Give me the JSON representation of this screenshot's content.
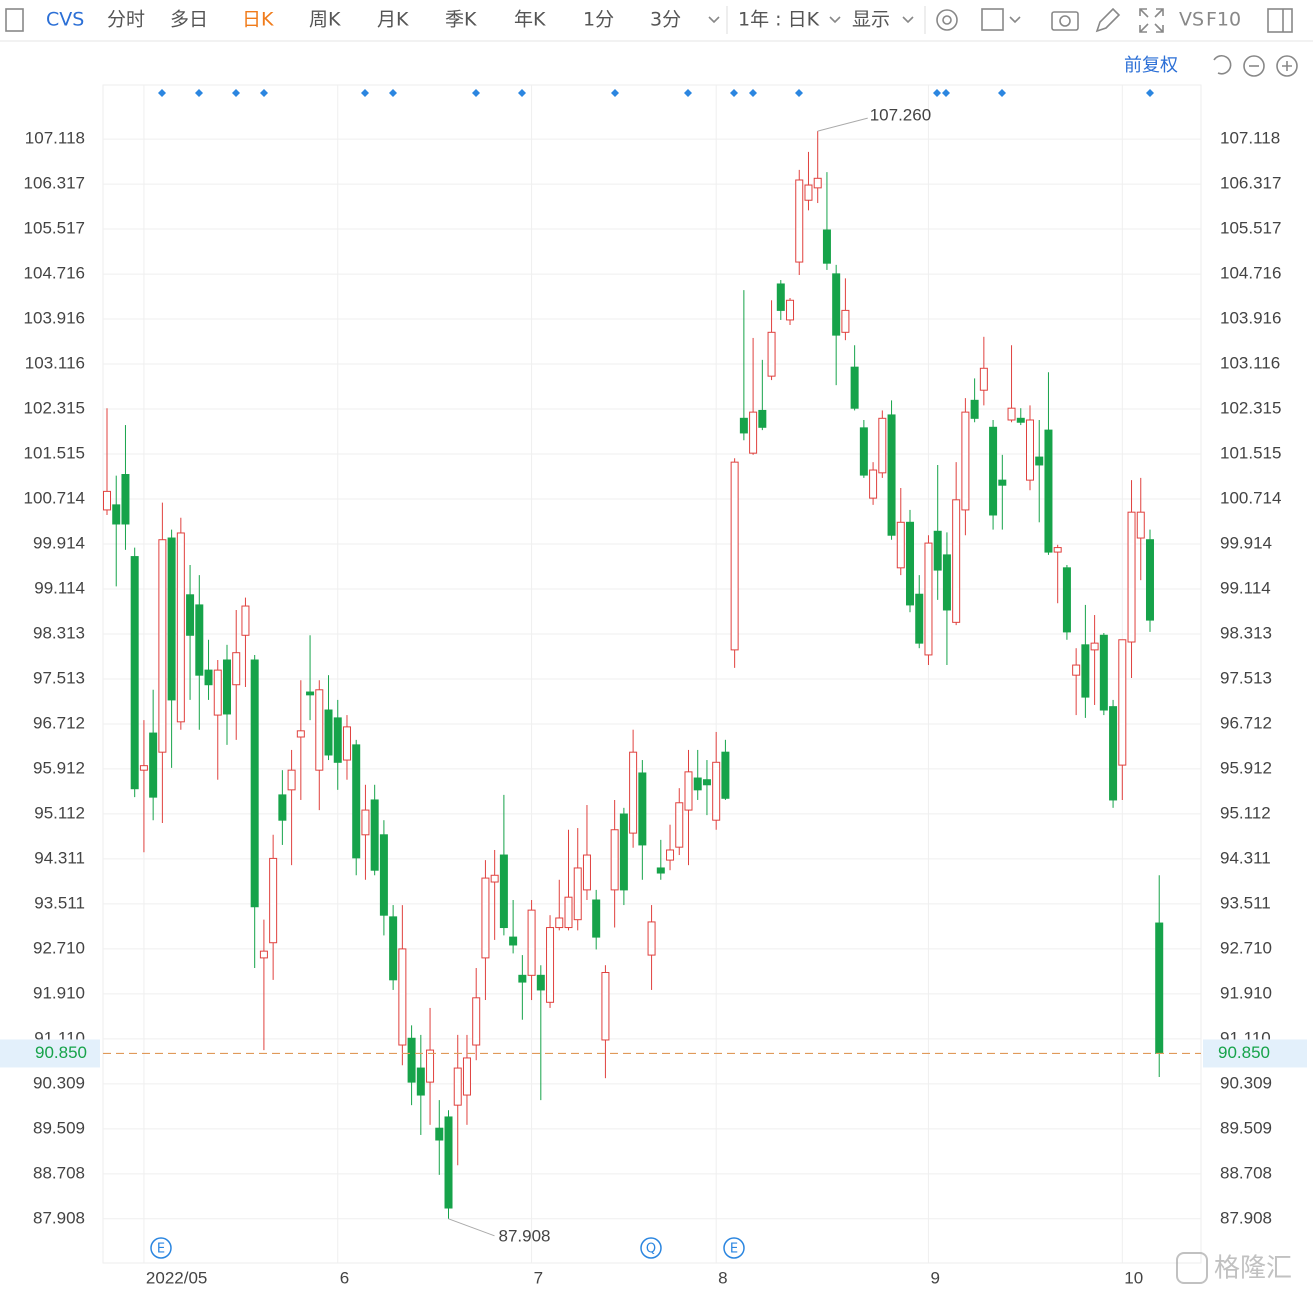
{
  "toolbar": {
    "symbol": "CVS",
    "tabs": [
      "分时",
      "多日",
      "日K",
      "周K",
      "月K",
      "季K",
      "年K",
      "1分",
      "3分"
    ],
    "active_tab": 2,
    "period": "1年 : 日K",
    "display": "显示",
    "vs": "VS",
    "f10": "F10",
    "adjust": "前复权"
  },
  "events": [
    "E",
    "Q",
    "E"
  ],
  "watermark": "格隆汇",
  "chart_data": {
    "type": "candlestick",
    "up_color": "#e0413e",
    "down_color": "#16a34a",
    "ylim": [
      87.62,
      108.08
    ],
    "yticks": [
      107.118,
      106.317,
      105.517,
      104.716,
      103.916,
      103.116,
      102.315,
      101.515,
      100.714,
      99.914,
      99.114,
      98.313,
      97.513,
      96.712,
      95.912,
      95.112,
      94.311,
      93.511,
      {
        "value": 92.71,
        "label": "92.710"
      },
      {
        "value": 91.91,
        "label": "91.910"
      },
      {
        "value": 91.11,
        "label": "91.110"
      },
      90.309,
      89.509,
      88.708,
      87.908
    ],
    "grid": true,
    "current_price": {
      "value": 90.85,
      "label": "90.850"
    },
    "max_label": {
      "value": 107.26,
      "label": "107.260"
    },
    "min_label": {
      "value": 87.908,
      "label": "87.908"
    },
    "categories": [
      null,
      null,
      null,
      null,
      "2022/05",
      null,
      null,
      null,
      null,
      null,
      null,
      null,
      null,
      null,
      null,
      null,
      null,
      null,
      null,
      null,
      null,
      null,
      null,
      null,
      null,
      "6",
      null,
      null,
      null,
      null,
      null,
      null,
      null,
      null,
      null,
      null,
      null,
      null,
      null,
      null,
      null,
      null,
      null,
      null,
      null,
      null,
      "7",
      null,
      null,
      null,
      null,
      null,
      null,
      null,
      null,
      null,
      null,
      null,
      null,
      null,
      null,
      null,
      null,
      null,
      null,
      null,
      "8",
      null,
      null,
      null,
      null,
      null,
      null,
      null,
      null,
      null,
      null,
      null,
      null,
      null,
      null,
      null,
      null,
      null,
      null,
      null,
      null,
      null,
      null,
      "9",
      null,
      null,
      null,
      null,
      null,
      null,
      null,
      null,
      null,
      null,
      null,
      null,
      null,
      null,
      null,
      null,
      null,
      null,
      null,
      null,
      "10",
      null,
      null,
      null,
      null
    ],
    "candles": [
      [
        100.52,
        102.33,
        100.43,
        100.85
      ],
      [
        100.61,
        101.13,
        99.16,
        100.27
      ],
      [
        101.15,
        102.03,
        99.81,
        100.27
      ],
      [
        99.69,
        99.85,
        95.41,
        95.56
      ],
      [
        95.89,
        96.78,
        94.43,
        95.97
      ],
      [
        96.55,
        97.32,
        95.0,
        95.41
      ],
      [
        96.21,
        100.65,
        94.95,
        99.99
      ],
      [
        100.02,
        100.17,
        95.93,
        97.14
      ],
      [
        96.75,
        100.38,
        96.61,
        100.11
      ],
      [
        99.01,
        99.54,
        97.14,
        98.29
      ],
      [
        98.83,
        99.36,
        96.61,
        97.58
      ],
      [
        97.67,
        98.21,
        97.14,
        97.41
      ],
      [
        96.87,
        97.85,
        95.72,
        97.67
      ],
      [
        97.85,
        98.12,
        96.34,
        96.89
      ],
      [
        97.41,
        98.74,
        96.43,
        97.98
      ],
      [
        98.29,
        98.96,
        97.37,
        98.81
      ],
      [
        97.85,
        97.94,
        92.37,
        93.46
      ],
      [
        92.55,
        93.23,
        90.91,
        92.67
      ],
      [
        92.82,
        94.74,
        92.16,
        94.32
      ],
      [
        95.45,
        95.89,
        94.56,
        95.0
      ],
      [
        95.54,
        96.25,
        94.2,
        95.89
      ],
      [
        96.48,
        97.49,
        95.36,
        96.59
      ],
      [
        97.28,
        98.29,
        96.78,
        97.23
      ],
      [
        95.89,
        97.49,
        95.18,
        97.32
      ],
      [
        96.96,
        97.58,
        96.07,
        96.16
      ],
      [
        96.82,
        97.14,
        95.54,
        96.03
      ],
      [
        96.07,
        96.87,
        95.72,
        96.66
      ],
      [
        96.34,
        96.43,
        94.02,
        94.33
      ],
      [
        94.74,
        95.63,
        93.94,
        95.18
      ],
      [
        95.36,
        95.63,
        94.02,
        94.11
      ],
      [
        94.74,
        95.0,
        92.95,
        93.31
      ],
      [
        93.28,
        93.49,
        91.98,
        92.16
      ],
      [
        91.0,
        93.49,
        90.64,
        92.71
      ],
      [
        91.12,
        91.35,
        89.93,
        90.34
      ],
      [
        90.59,
        91.18,
        89.4,
        90.11
      ],
      [
        90.34,
        91.66,
        89.58,
        90.91
      ],
      [
        89.52,
        90.02,
        88.69,
        89.31
      ],
      [
        89.72,
        89.84,
        87.908,
        88.1
      ],
      [
        89.93,
        91.18,
        88.86,
        90.59
      ],
      [
        90.11,
        91.18,
        89.58,
        90.77
      ],
      [
        91.0,
        92.37,
        90.73,
        91.84
      ],
      [
        92.55,
        94.29,
        91.8,
        93.97
      ],
      [
        93.9,
        94.47,
        92.87,
        94.02
      ],
      [
        94.38,
        95.45,
        92.95,
        93.09
      ],
      [
        92.92,
        93.58,
        92.63,
        92.78
      ],
      [
        92.24,
        92.6,
        91.45,
        92.12
      ],
      [
        92.24,
        93.58,
        91.8,
        93.4
      ],
      [
        92.24,
        92.42,
        90.02,
        91.98
      ],
      [
        91.76,
        93.31,
        91.66,
        93.09
      ],
      [
        93.09,
        93.94,
        93.04,
        93.26
      ],
      [
        93.09,
        94.83,
        93.04,
        93.63
      ],
      [
        93.23,
        94.86,
        93.04,
        94.15
      ],
      [
        93.76,
        95.27,
        93.58,
        94.38
      ],
      [
        93.58,
        93.76,
        92.7,
        92.92
      ],
      [
        91.09,
        92.42,
        90.41,
        92.29
      ],
      [
        93.76,
        95.36,
        93.09,
        94.83
      ],
      [
        95.11,
        95.22,
        93.49,
        93.76
      ],
      [
        94.77,
        96.61,
        94.51,
        96.21
      ],
      [
        95.84,
        96.07,
        93.94,
        94.56
      ],
      [
        92.6,
        93.49,
        91.98,
        93.19
      ],
      [
        94.15,
        94.65,
        93.94,
        94.06
      ],
      [
        94.29,
        94.92,
        94.11,
        94.47
      ],
      [
        94.52,
        95.57,
        94.38,
        95.31
      ],
      [
        95.18,
        96.25,
        94.2,
        95.86
      ],
      [
        95.75,
        96.25,
        95.36,
        95.54
      ],
      [
        95.72,
        96.07,
        95.09,
        95.63
      ],
      [
        95.0,
        96.57,
        94.83,
        96.03
      ],
      [
        96.21,
        96.43,
        95.36,
        95.39
      ],
      [
        98.03,
        101.44,
        97.71,
        101.37
      ],
      [
        102.15,
        104.43,
        101.76,
        101.89
      ],
      [
        101.53,
        103.58,
        101.5,
        102.26
      ],
      [
        102.29,
        103.19,
        101.94,
        101.99
      ],
      [
        102.9,
        104.25,
        102.83,
        103.68
      ],
      [
        104.54,
        104.61,
        103.9,
        104.07
      ],
      [
        103.9,
        104.29,
        103.81,
        104.25
      ],
      [
        104.93,
        106.57,
        104.7,
        106.39
      ],
      [
        106.03,
        106.89,
        105.85,
        106.3
      ],
      [
        106.25,
        107.26,
        105.98,
        106.42
      ],
      [
        105.5,
        106.53,
        104.79,
        104.91
      ],
      [
        104.72,
        104.88,
        102.74,
        103.63
      ],
      [
        103.68,
        104.64,
        103.54,
        104.07
      ],
      [
        103.06,
        103.45,
        102.29,
        102.33
      ],
      [
        101.98,
        102.12,
        101.09,
        101.14
      ],
      [
        100.73,
        101.37,
        100.61,
        101.23
      ],
      [
        101.18,
        102.29,
        101.09,
        102.15
      ],
      [
        102.21,
        102.47,
        99.99,
        100.07
      ],
      [
        99.49,
        100.91,
        99.36,
        100.3
      ],
      [
        100.3,
        100.52,
        98.7,
        98.83
      ],
      [
        99.02,
        99.36,
        98.06,
        98.15
      ],
      [
        97.94,
        100.07,
        97.76,
        99.93
      ],
      [
        100.14,
        101.32,
        98.92,
        99.45
      ],
      [
        99.72,
        100.12,
        97.76,
        98.74
      ],
      [
        98.52,
        101.37,
        98.47,
        100.7
      ],
      [
        100.52,
        102.51,
        100.07,
        102.26
      ],
      [
        102.47,
        102.86,
        102.08,
        102.15
      ],
      [
        102.65,
        103.6,
        102.38,
        103.04
      ],
      [
        101.99,
        102.12,
        100.17,
        100.43
      ],
      [
        101.05,
        101.5,
        100.17,
        100.96
      ],
      [
        102.12,
        103.45,
        102.08,
        102.33
      ],
      [
        102.15,
        102.33,
        102.03,
        102.08
      ],
      [
        101.05,
        102.38,
        100.87,
        102.12
      ],
      [
        101.46,
        102.12,
        100.3,
        101.32
      ],
      [
        101.94,
        102.97,
        99.72,
        99.77
      ],
      [
        99.77,
        99.9,
        98.86,
        99.85
      ],
      [
        99.49,
        99.54,
        98.21,
        98.35
      ],
      [
        97.58,
        98.06,
        96.87,
        97.76
      ],
      [
        98.12,
        98.83,
        96.82,
        97.19
      ],
      [
        98.03,
        98.65,
        97.05,
        98.15
      ],
      [
        98.29,
        98.33,
        96.87,
        96.96
      ],
      [
        97.02,
        97.14,
        95.22,
        95.36
      ],
      [
        95.98,
        98.21,
        95.36,
        98.21
      ],
      [
        98.17,
        101.05,
        97.53,
        100.48
      ],
      [
        100.02,
        101.09,
        99.27,
        100.48
      ],
      [
        99.99,
        100.17,
        98.35,
        98.56
      ],
      [
        93.17,
        94.02,
        90.43,
        90.85
      ]
    ]
  }
}
